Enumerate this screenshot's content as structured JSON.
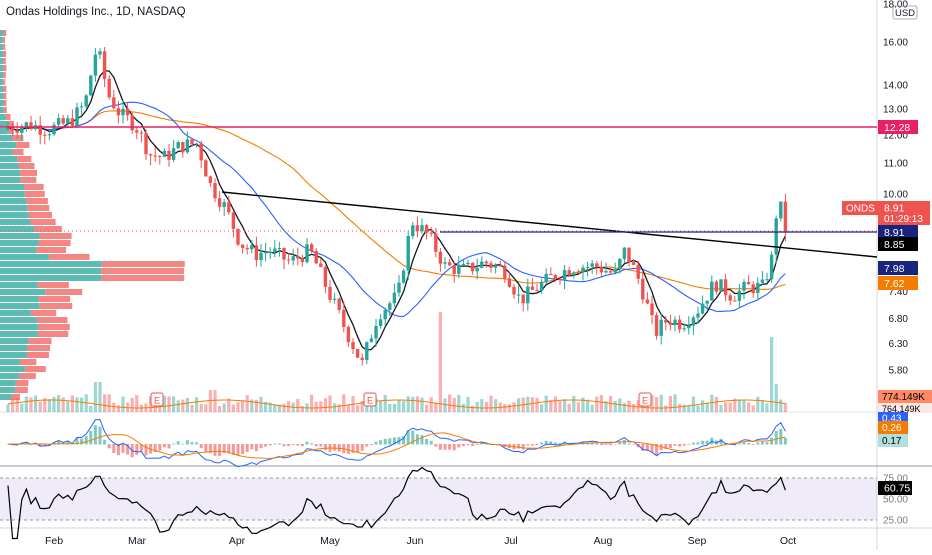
{
  "title": "Ondas Holdings Inc., 1D, NASDAQ",
  "currency": "USD",
  "colors": {
    "up": "#26a69a",
    "down": "#ef5350",
    "sma_short": "#131722",
    "sma_mid": "#2962ff",
    "sma_long": "#f57c00",
    "resistance": "#e91e63",
    "trendline": "#000000",
    "level": "#1a237e",
    "rsi_band": "#7e57c2",
    "macd": "#2962ff",
    "signal": "#f57c00"
  },
  "price_axis": {
    "ticks": [
      "18.00",
      "16.00",
      "14.00",
      "13.00",
      "12.00",
      "11.00",
      "10.00",
      "8.91",
      "8.85",
      "7.98",
      "7.62",
      "7.40",
      "6.80",
      "6.30",
      "5.80"
    ]
  },
  "time_axis": {
    "labels": [
      "Feb",
      "Mar",
      "Apr",
      "May",
      "Jun",
      "Jul",
      "Aug",
      "Sep",
      "Oct"
    ]
  },
  "price_labels": {
    "resistance": "12.28",
    "symbol": "ONDS",
    "last": "8.91",
    "countdown": "01:29:13",
    "level": "8.91",
    "sma_short": "8.85",
    "sma_mid": "7.98",
    "sma_long": "7.62"
  },
  "volume_labels": {
    "vol1": "774.149K",
    "vol2": "764.149K"
  },
  "macd_labels": {
    "macd": "0.43",
    "signal": "0.26",
    "hist": "0.17"
  },
  "rsi": {
    "ticks": [
      "75.00",
      "50.00",
      "25.00"
    ],
    "value": "60.75"
  },
  "earnings_marker": "E",
  "chart_data": {
    "type": "candlestick",
    "title": "Ondas Holdings Inc., 1D, NASDAQ",
    "currency": "USD",
    "period": "Jan–Oct",
    "resistance_level": 12.28,
    "horizontal_level": 8.91,
    "trendline": {
      "start": {
        "date": "Mar 20",
        "price": 10.1
      },
      "end": {
        "date": "Oct 1",
        "price": 8.7
      }
    },
    "last_price": 8.91,
    "sma_values": {
      "short": 8.85,
      "mid": 7.98,
      "long": 7.62
    },
    "closes_approx": [
      {
        "month": "Jan late",
        "price": 12.2
      },
      {
        "month": "Feb early",
        "price": 12.6
      },
      {
        "month": "Feb mid",
        "price": 15.8
      },
      {
        "month": "Feb late",
        "price": 12.8
      },
      {
        "month": "Mar early",
        "price": 11.4
      },
      {
        "month": "Mar mid",
        "price": 11.8
      },
      {
        "month": "Mar late",
        "price": 9.9
      },
      {
        "month": "Apr early",
        "price": 8.6
      },
      {
        "month": "Apr mid",
        "price": 8.2
      },
      {
        "month": "Apr late",
        "price": 8.4
      },
      {
        "month": "May early",
        "price": 7.0
      },
      {
        "month": "May mid",
        "price": 5.9
      },
      {
        "month": "May late",
        "price": 7.2
      },
      {
        "month": "Jun early",
        "price": 9.2
      },
      {
        "month": "Jun mid",
        "price": 8.0
      },
      {
        "month": "Jul early",
        "price": 7.9
      },
      {
        "month": "Jul mid",
        "price": 7.3
      },
      {
        "month": "Jul late",
        "price": 8.0
      },
      {
        "month": "Aug early",
        "price": 8.0
      },
      {
        "month": "Aug mid",
        "price": 8.4
      },
      {
        "month": "Aug late",
        "price": 6.5
      },
      {
        "month": "Sep early",
        "price": 7.0
      },
      {
        "month": "Sep mid",
        "price": 7.6
      },
      {
        "month": "Sep late",
        "price": 9.9
      },
      {
        "month": "Oct",
        "price": 8.91
      }
    ],
    "macd": {
      "macd": 0.43,
      "signal": 0.26,
      "histogram": 0.17
    },
    "rsi_value": 60.75,
    "volume_last": "774.149K"
  }
}
